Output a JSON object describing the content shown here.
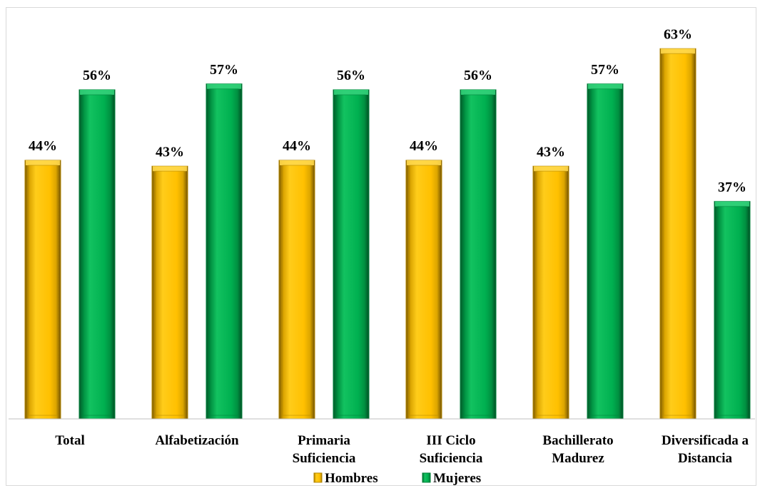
{
  "chart_data": {
    "type": "bar",
    "categories": [
      [
        "Total"
      ],
      [
        "Alfabetización"
      ],
      [
        "Primaria",
        "Suficiencia"
      ],
      [
        "III Ciclo",
        "Suficiencia"
      ],
      [
        "Bachillerato",
        "Madurez"
      ],
      [
        "Diversificada a",
        "Distancia"
      ]
    ],
    "series": [
      {
        "name": "Hombres",
        "values": [
          44,
          43,
          44,
          44,
          43,
          63
        ],
        "labels": [
          "44%",
          "43%",
          "44%",
          "44%",
          "43%",
          "63%"
        ],
        "color": "#FFC000"
      },
      {
        "name": "Mujeres",
        "values": [
          56,
          57,
          56,
          56,
          57,
          37
        ],
        "labels": [
          "56%",
          "57%",
          "56%",
          "56%",
          "57%",
          "37%"
        ],
        "color": "#00B050"
      }
    ],
    "ylim": [
      0,
      100
    ],
    "grid": false,
    "legend_position": "bottom",
    "title": "",
    "xlabel": "",
    "ylabel": ""
  }
}
